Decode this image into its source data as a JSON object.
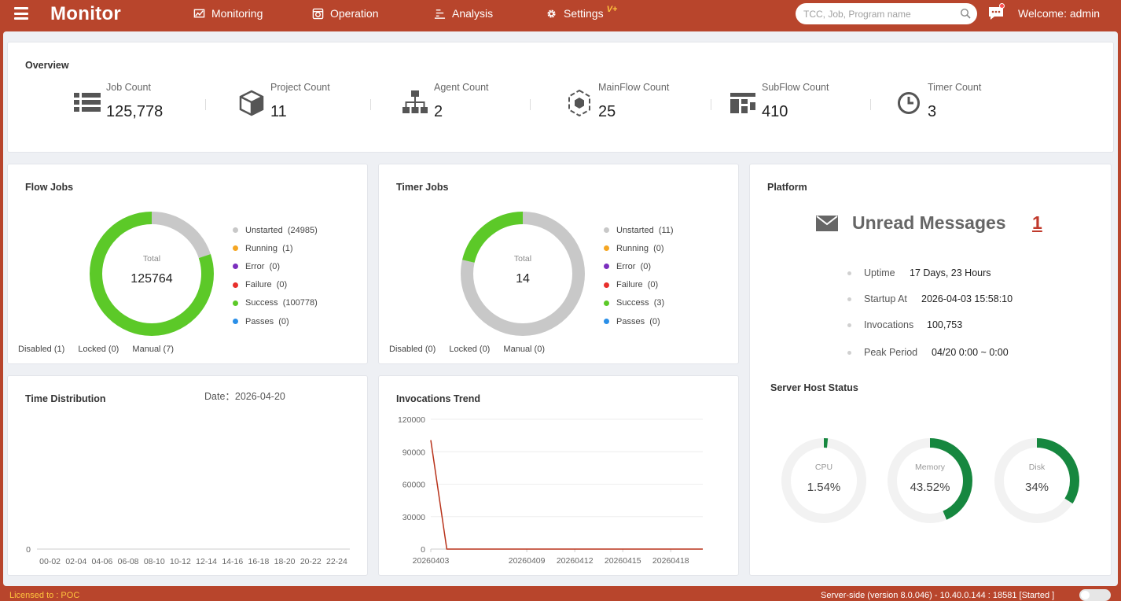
{
  "header": {
    "brand": "Monitor",
    "nav": [
      {
        "label": "Monitoring",
        "icon": "monitor-chart-icon"
      },
      {
        "label": "Operation",
        "icon": "operation-icon"
      },
      {
        "label": "Analysis",
        "icon": "analysis-icon"
      },
      {
        "label": "Settings",
        "icon": "gear-icon",
        "badge": "V+"
      }
    ],
    "search_placeholder": "TCC, Job, Program name",
    "welcome": "Welcome: admin",
    "has_unread_notification": true
  },
  "overview": {
    "title": "Overview",
    "items": [
      {
        "label": "Job Count",
        "value": "125,778",
        "icon": "list-icon"
      },
      {
        "label": "Project Count",
        "value": "11",
        "icon": "cube-icon"
      },
      {
        "label": "Agent Count",
        "value": "2",
        "icon": "hierarchy-icon"
      },
      {
        "label": "MainFlow Count",
        "value": "25",
        "icon": "hexagon-network-icon"
      },
      {
        "label": "SubFlow Count",
        "value": "410",
        "icon": "subflow-icon"
      },
      {
        "label": "Timer Count",
        "value": "3",
        "icon": "clock-icon"
      }
    ]
  },
  "flow_jobs": {
    "title": "Flow Jobs",
    "total_label": "Total",
    "total": "125764",
    "legend": [
      {
        "label": "Unstarted",
        "count": "(24985)",
        "value": 24985,
        "color": "#c8c8c8"
      },
      {
        "label": "Running",
        "count": "(1)",
        "value": 1,
        "color": "#f5a623"
      },
      {
        "label": "Error",
        "count": "(0)",
        "value": 0,
        "color": "#7b2fbe"
      },
      {
        "label": "Failure",
        "count": "(0)",
        "value": 0,
        "color": "#e8302c"
      },
      {
        "label": "Success",
        "count": "(100778)",
        "value": 100778,
        "color": "#5cc928"
      },
      {
        "label": "Passes",
        "count": "(0)",
        "value": 0,
        "color": "#2a8fe8"
      }
    ],
    "footer": [
      "Disabled (1)",
      "Locked (0)",
      "Manual (7)"
    ]
  },
  "timer_jobs": {
    "title": "Timer Jobs",
    "total_label": "Total",
    "total": "14",
    "legend": [
      {
        "label": "Unstarted",
        "count": "(11)",
        "value": 11,
        "color": "#c8c8c8"
      },
      {
        "label": "Running",
        "count": "(0)",
        "value": 0,
        "color": "#f5a623"
      },
      {
        "label": "Error",
        "count": "(0)",
        "value": 0,
        "color": "#7b2fbe"
      },
      {
        "label": "Failure",
        "count": "(0)",
        "value": 0,
        "color": "#e8302c"
      },
      {
        "label": "Success",
        "count": "(3)",
        "value": 3,
        "color": "#5cc928"
      },
      {
        "label": "Passes",
        "count": "(0)",
        "value": 0,
        "color": "#2a8fe8"
      }
    ],
    "footer": [
      "Disabled (0)",
      "Locked (0)",
      "Manual (0)"
    ]
  },
  "platform": {
    "title": "Platform",
    "unread_label": "Unread Messages",
    "unread_count": "1",
    "info": [
      {
        "label": "Uptime",
        "value": "17 Days, 23 Hours"
      },
      {
        "label": "Startup At",
        "value": "2026-04-03 15:58:10"
      },
      {
        "label": "Invocations",
        "value": "100,753"
      },
      {
        "label": "Peak Period",
        "value": "04/20 0:00 ~ 0:00"
      }
    ],
    "server_status_title": "Server Host Status",
    "gauges": [
      {
        "label": "CPU",
        "text": "1.54%",
        "value": 1.54
      },
      {
        "label": "Memory",
        "text": "43.52%",
        "value": 43.52
      },
      {
        "label": "Disk",
        "text": "34%",
        "value": 34
      }
    ]
  },
  "time_distribution": {
    "title": "Time Distribution",
    "date_label": "Date：2026-04-20"
  },
  "invocations_trend": {
    "title": "Invocations Trend"
  },
  "chart_data": [
    {
      "type": "bar",
      "title": "Time Distribution",
      "categories": [
        "00-02",
        "02-04",
        "04-06",
        "06-08",
        "08-10",
        "10-12",
        "12-14",
        "14-16",
        "16-18",
        "18-20",
        "20-22",
        "22-24"
      ],
      "values": [
        0,
        0,
        0,
        0,
        0,
        0,
        0,
        0,
        0,
        0,
        0,
        0
      ],
      "yticks": [
        "0"
      ]
    },
    {
      "type": "line",
      "title": "Invocations Trend",
      "x": [
        "20260403",
        "20260404",
        "20260405",
        "20260406",
        "20260407",
        "20260408",
        "20260409",
        "20260410",
        "20260411",
        "20260412",
        "20260413",
        "20260414",
        "20260415",
        "20260416",
        "20260417",
        "20260418",
        "20260419",
        "20260420"
      ],
      "xticks": [
        "20260403",
        "20260409",
        "20260412",
        "20260415",
        "20260418"
      ],
      "values": [
        100753,
        0,
        0,
        0,
        0,
        0,
        0,
        0,
        0,
        0,
        0,
        0,
        0,
        0,
        0,
        0,
        0,
        0
      ],
      "ylim": [
        0,
        120000
      ],
      "yticks": [
        "120000",
        "90000",
        "60000",
        "30000",
        "0"
      ],
      "color": "#b8321a"
    }
  ],
  "statusbar": {
    "license": "Licensed to : POC",
    "server": "Server-side  (version 8.0.046)  - 10.40.0.144 : 18581 [Started ]"
  },
  "colors": {
    "brand": "#b8452c",
    "gauge": "#16873f",
    "gauge_track": "#f2f2f2"
  }
}
